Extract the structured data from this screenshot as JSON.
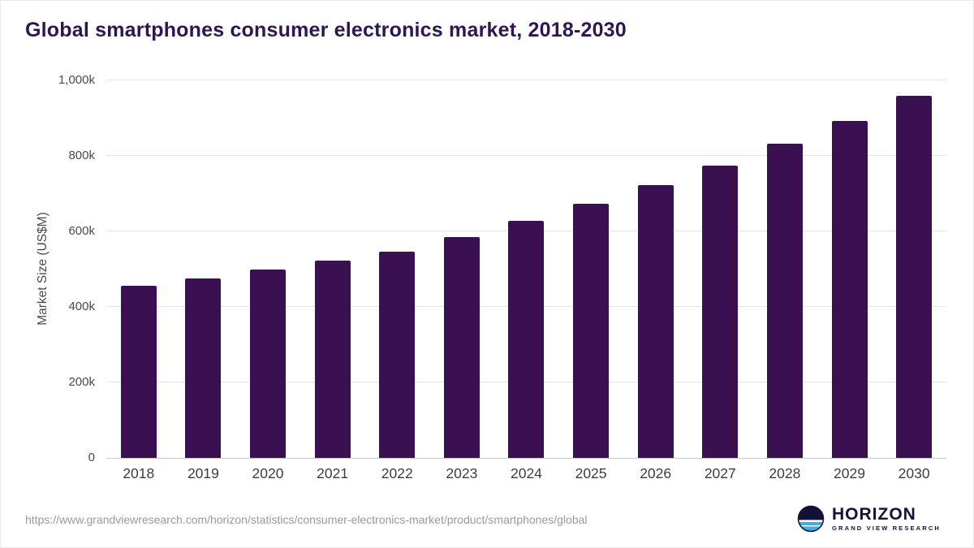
{
  "title": "Global smartphones consumer electronics market, 2018-2030",
  "footer": {
    "source_url": "https://www.grandviewresearch.com/horizon/statistics/consumer-electronics-market/product/smartphones/global",
    "logo_name": "HORIZON",
    "logo_sub": "GRAND VIEW RESEARCH"
  },
  "colors": {
    "bar": "#3b1053",
    "title": "#2e1650",
    "axis_text": "#4a4a4a",
    "gridline": "#e4e4e4",
    "footer_text": "#9a9a9a",
    "logo_navy": "#121239",
    "logo_blue": "#45aede"
  },
  "chart_data": {
    "type": "bar",
    "title": "Global smartphones consumer electronics market, 2018-2030",
    "xlabel": "",
    "ylabel": "Market Size (US$M)",
    "unit": "k (thousand US$M)",
    "ylim": [
      0,
      1000
    ],
    "grid": true,
    "legend": false,
    "bar_color": "#3b1053",
    "categories": [
      "2018",
      "2019",
      "2020",
      "2021",
      "2022",
      "2023",
      "2024",
      "2025",
      "2026",
      "2027",
      "2028",
      "2029",
      "2030"
    ],
    "values": [
      455,
      475,
      498,
      522,
      547,
      585,
      628,
      673,
      722,
      775,
      833,
      893,
      960
    ],
    "y_ticks": [
      {
        "value": 0,
        "label": "0"
      },
      {
        "value": 200,
        "label": "200k"
      },
      {
        "value": 400,
        "label": "400k"
      },
      {
        "value": 600,
        "label": "600k"
      },
      {
        "value": 800,
        "label": "800k"
      },
      {
        "value": 1000,
        "label": "1,000k"
      }
    ]
  }
}
